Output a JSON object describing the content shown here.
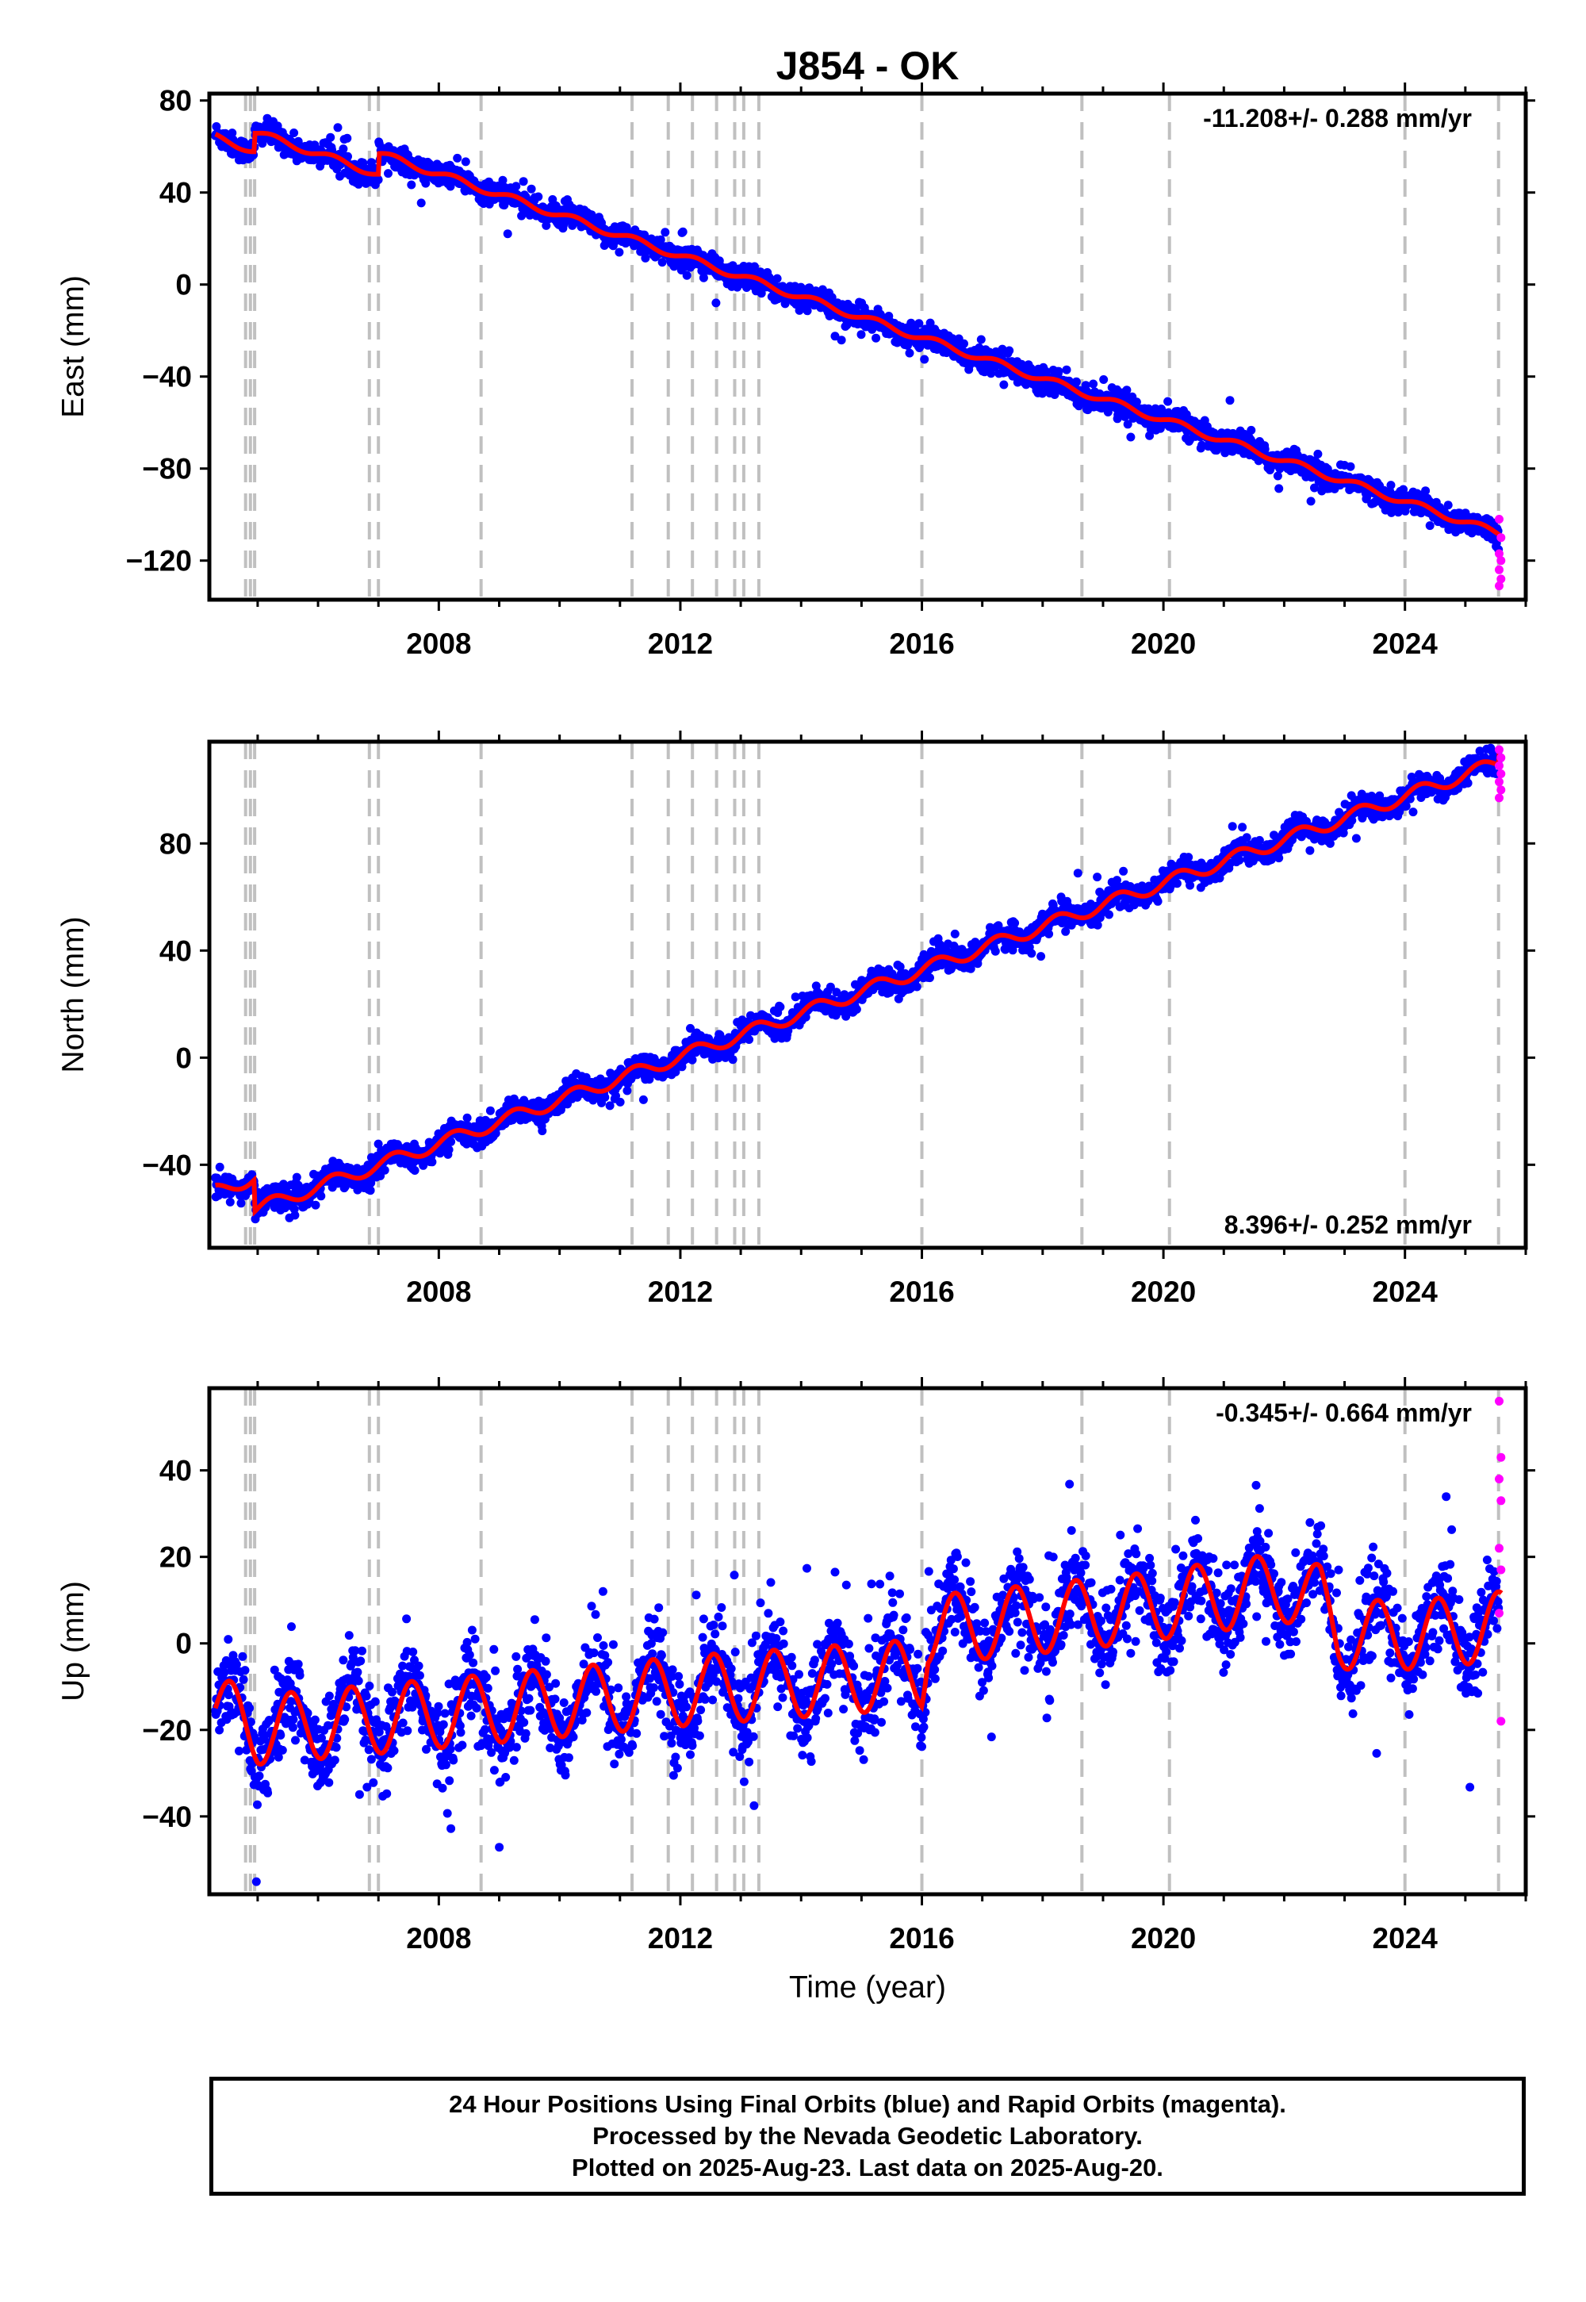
{
  "title": "J854 - OK",
  "footer": {
    "line1": "24 Hour Positions Using Final Orbits (blue) and Rapid Orbits (magenta).",
    "line2": "Processed by the Nevada Geodetic Laboratory.",
    "line3": "Plotted on 2025-Aug-23. Last data on 2025-Aug-20."
  },
  "colors": {
    "final": "#0000ff",
    "rapid": "#ff00ff",
    "model": "#ff0000",
    "steps": "#c0c0c0"
  },
  "chart_data": [
    {
      "type": "scatter",
      "ylabel": "East (mm)",
      "xlabel": "",
      "rate_label": "-11.208+/- 0.288 mm/yr",
      "rate_position": "top-right",
      "xlim": [
        2004.2,
        2026.0
      ],
      "ylim": [
        -137,
        83
      ],
      "xticks": [
        2008,
        2012,
        2016,
        2020,
        2024
      ],
      "yticks": [
        80,
        40,
        0,
        -40,
        -80,
        -120
      ],
      "ytick_labels": [
        "80",
        "40",
        "0",
        "−40",
        "−80",
        "−120"
      ],
      "step_epochs": [
        2004.8,
        2004.88,
        2004.95,
        2006.85,
        2007.0,
        2008.7,
        2011.2,
        2011.8,
        2012.2,
        2012.6,
        2012.9,
        2013.05,
        2013.3,
        2016.0,
        2018.65,
        2020.1,
        2024.0,
        2025.55
      ],
      "model": {
        "t0": 2004.3,
        "t_end": 2025.6,
        "offset_start": 64,
        "velocity": -8.9,
        "annual_amplitude": 1.5,
        "steps": [
          [
            2004.95,
            8
          ],
          [
            2007.0,
            9
          ]
        ]
      },
      "scatter_sigma": 2.5,
      "final_period": [
        2004.3,
        2025.55
      ],
      "rapid_values": [
        -102,
        -110,
        -117,
        -120,
        -124,
        -128,
        -131
      ]
    },
    {
      "type": "scatter",
      "ylabel": "North (mm)",
      "xlabel": "",
      "rate_label": "8.396+/- 0.252 mm/yr",
      "rate_position": "bottom-right",
      "xlim": [
        2004.2,
        2026.0
      ],
      "ylim": [
        -71,
        118
      ],
      "xticks": [
        2008,
        2012,
        2016,
        2020,
        2024
      ],
      "yticks": [
        80,
        40,
        0,
        -40
      ],
      "ytick_labels": [
        "80",
        "40",
        "0",
        "−40"
      ],
      "step_epochs": [
        2004.8,
        2004.88,
        2004.95,
        2006.85,
        2007.0,
        2008.7,
        2011.2,
        2011.8,
        2012.2,
        2012.6,
        2012.9,
        2013.05,
        2013.3,
        2016.0,
        2018.65,
        2020.1,
        2024.0,
        2025.55
      ],
      "model": {
        "t0": 2004.3,
        "t_end": 2025.6,
        "offset_start": -50,
        "velocity": 8.1,
        "annual_amplitude": 2.5,
        "steps": [
          [
            2004.95,
            -12
          ],
          [
            2025.55,
            6
          ]
        ]
      },
      "scatter_sigma": 2.2,
      "final_period": [
        2004.3,
        2025.55
      ],
      "rapid_values": [
        97,
        100,
        103,
        106,
        109,
        112,
        115
      ]
    },
    {
      "type": "scatter",
      "ylabel": "Up (mm)",
      "xlabel": "Time (year)",
      "rate_label": "-0.345+/- 0.664 mm/yr",
      "rate_position": "top-right",
      "xlim": [
        2004.2,
        2026.0
      ],
      "ylim": [
        -58,
        59
      ],
      "xticks": [
        2008,
        2012,
        2016,
        2020,
        2024
      ],
      "yticks": [
        40,
        20,
        0,
        -20,
        -40
      ],
      "ytick_labels": [
        "40",
        "20",
        "0",
        "−20",
        "−40"
      ],
      "step_epochs": [
        2004.8,
        2004.88,
        2004.95,
        2006.85,
        2007.0,
        2008.7,
        2011.2,
        2011.8,
        2012.2,
        2012.6,
        2012.9,
        2013.05,
        2013.3,
        2016.0,
        2018.65,
        2020.1,
        2024.0,
        2025.55
      ],
      "model": {
        "baseline": [
          [
            2004.3,
            -15
          ],
          [
            2005.0,
            -20
          ],
          [
            2012.9,
            -10
          ],
          [
            2013.1,
            -10
          ],
          [
            2016.0,
            -7
          ],
          [
            2016.1,
            3
          ],
          [
            2019.5,
            8
          ],
          [
            2022.0,
            13
          ],
          [
            2022.6,
            10
          ],
          [
            2022.9,
            2
          ],
          [
            2024.2,
            2
          ],
          [
            2025.6,
            4
          ]
        ],
        "annual_amplitude": 8,
        "annual_peak_phase": 0.55
      },
      "scatter_sigma": 5,
      "final_period": [
        2004.3,
        2025.55
      ],
      "rapid_values": [
        56,
        43,
        38,
        33,
        22,
        17,
        7,
        -18
      ]
    }
  ]
}
